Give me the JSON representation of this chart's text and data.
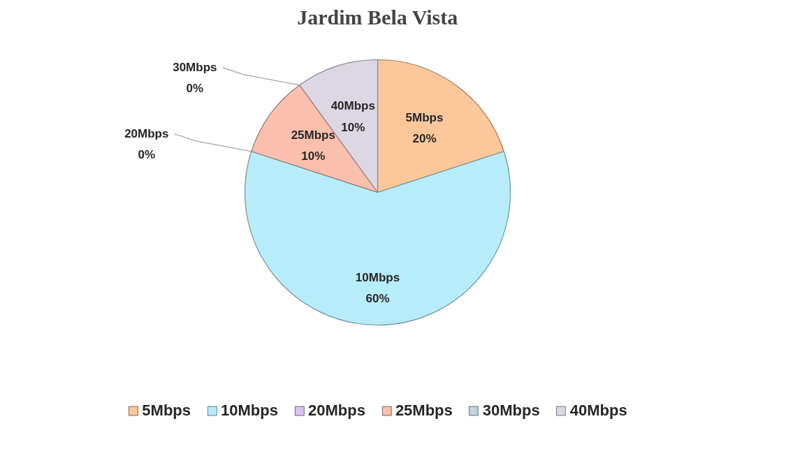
{
  "chart_data": {
    "type": "pie",
    "title": "Jardim Bela Vista",
    "categories": [
      "5Mbps",
      "10Mbps",
      "20Mbps",
      "25Mbps",
      "30Mbps",
      "40Mbps"
    ],
    "values": [
      20,
      60,
      0,
      10,
      0,
      10
    ],
    "value_labels": [
      "20%",
      "60%",
      "0%",
      "10%",
      "0%",
      "10%"
    ],
    "colors": [
      "#fcc89b",
      "#b7ecfa",
      "#d9c3f0",
      "#fbbfae",
      "#bcd8dc",
      "#ddd7e4"
    ],
    "legend": "bottom"
  }
}
